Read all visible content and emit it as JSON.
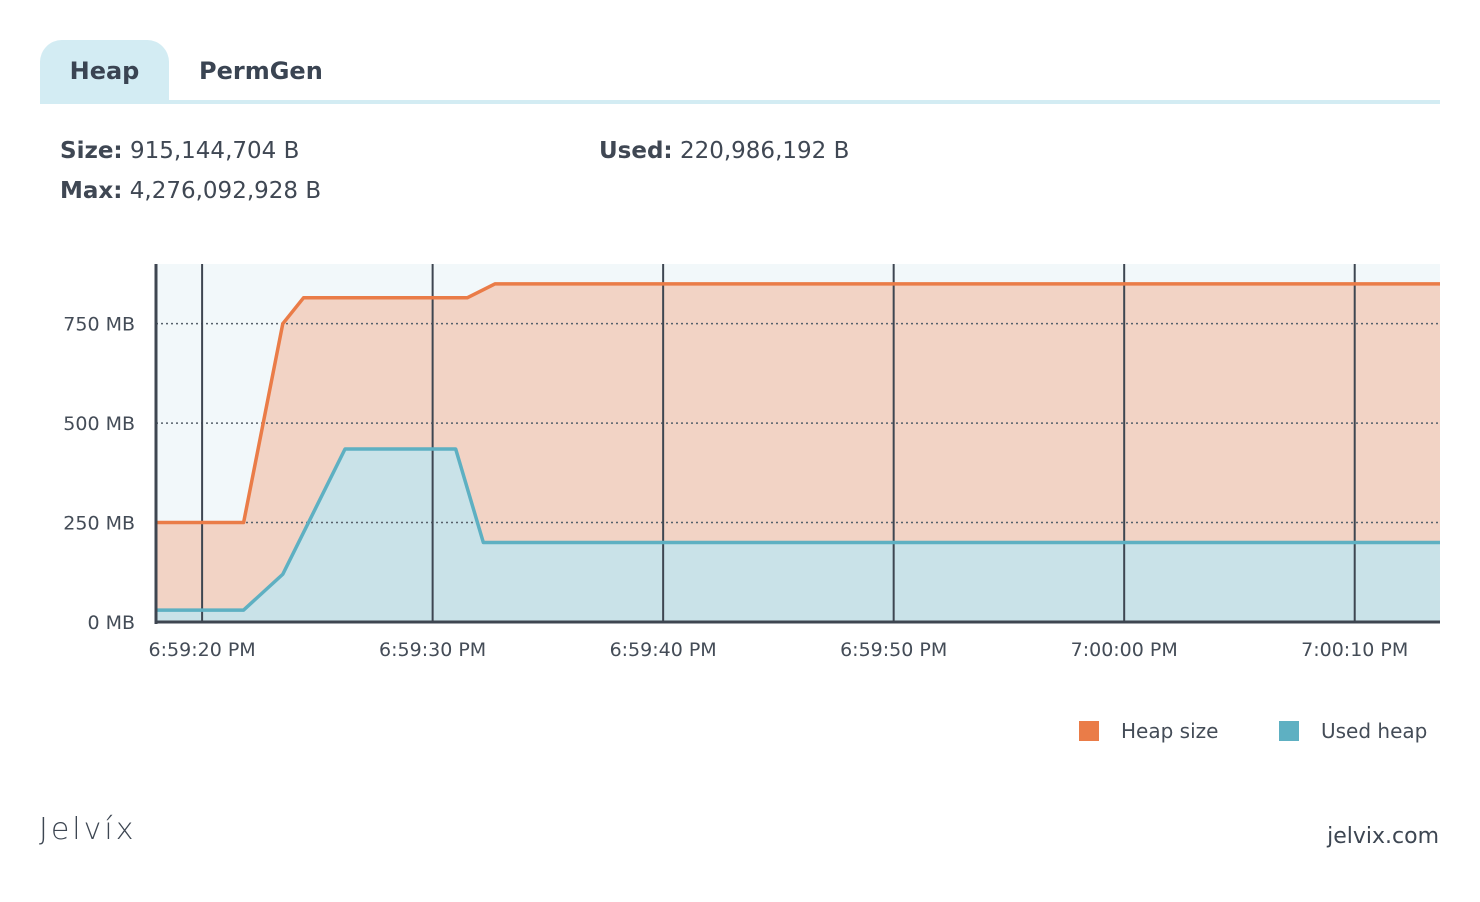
{
  "tabs": [
    {
      "label": "Heap",
      "active": true
    },
    {
      "label": "PermGen",
      "active": false
    }
  ],
  "stats": {
    "size_label": "Size:",
    "size_value": "915,144,704 B",
    "max_label": "Max:",
    "max_value": "4,276,092,928 B",
    "used_label": "Used:",
    "used_value": "220,986,192 B"
  },
  "chart_data": {
    "type": "area",
    "y_ticks": [
      "0 MB",
      "250 MB",
      "500 MB",
      "750 MB"
    ],
    "y_tick_values": [
      0,
      250,
      500,
      750
    ],
    "ylim": [
      0,
      900
    ],
    "x_ticks": [
      "6:59:20 PM",
      "6:59:30 PM",
      "6:59:40 PM",
      "6:59:50 PM",
      "7:00:00 PM",
      "7:00:10 PM"
    ],
    "x_tick_values": [
      20,
      30,
      40,
      50,
      60,
      70
    ],
    "xlim": [
      18,
      73.7
    ],
    "x_unit": "seconds after 6:59:00 PM",
    "grid": {
      "horizontal_dotted": true,
      "vertical_solid": true
    },
    "legend_position": "bottom-right",
    "series": [
      {
        "name": "Heap size",
        "color": "#ea7c48",
        "x": [
          18,
          21.8,
          23.5,
          24.4,
          31.5,
          32.7,
          73.7
        ],
        "values": [
          250,
          250,
          750,
          815,
          815,
          850,
          850
        ]
      },
      {
        "name": "Used heap",
        "color": "#5eb0c2",
        "x": [
          18,
          21.8,
          23.5,
          26.2,
          30.5,
          31.0,
          32.2,
          73.7
        ],
        "values": [
          30,
          30,
          120,
          435,
          435,
          435,
          200,
          200
        ]
      }
    ]
  },
  "legend": {
    "heap_label": "Heap size",
    "used_label": "Used heap",
    "heap_color": "#ea7c48",
    "used_color": "#5eb0c2"
  },
  "brand": "Jelvíx",
  "site": "jelvix.com"
}
